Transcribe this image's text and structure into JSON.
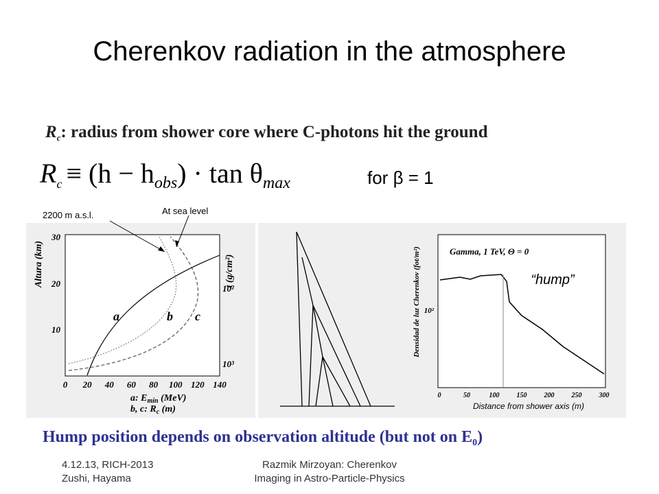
{
  "title": "Cherenkov radiation in the atmosphere",
  "definition": {
    "symbol": "R",
    "subscript": "c",
    "text": ": radius from shower core where C-photons hit the ground"
  },
  "formula": {
    "lhs": "R",
    "lhs_sub": "c",
    "rhs": "≡ (h − h",
    "obs_sub": "obs",
    "rest": ") · tan θ",
    "max_sub": "max"
  },
  "condition": "for β = 1",
  "annotations": {
    "high": "2200 m a.s.l.",
    "sea": "At sea level",
    "hump": "“hump”"
  },
  "left_plot": {
    "y_label": "Altura (km)",
    "y_ticks": [
      "30",
      "20",
      "10"
    ],
    "x_ticks": [
      "0",
      "20",
      "40",
      "60",
      "80",
      "100",
      "120",
      "140"
    ],
    "right_label": "t (g/cm²)",
    "right_ticks": [
      "10²",
      "10³"
    ],
    "curve_labels": [
      "a",
      "b",
      "c"
    ],
    "x_label_1": "a: E",
    "x_label_1_sub": "min",
    "x_label_1_unit": " (MeV)",
    "x_label_2": "b, c: R",
    "x_label_2_sub": "c",
    "x_label_2_unit": " (m)"
  },
  "right_plot": {
    "y_label": "Densidad de luz Cherenkov (fot/m²)",
    "legend": "Gamma, 1 TeV,   Θ = 0",
    "y_tick": "10²",
    "x_ticks": [
      "0",
      "50",
      "100",
      "150",
      "200",
      "250",
      "300"
    ],
    "x_label": "Distance from shower axis (m)"
  },
  "conclusion": {
    "text": "Hump position depends on observation altitude (but not on E",
    "sub": "0",
    "tail": ")"
  },
  "footer": {
    "left_1": "4.12.13, RICH-2013",
    "left_2": "Zushi, Hayama",
    "center_1": "Razmik Mirzoyan: Cherenkov",
    "center_2": "Imaging in Astro-Particle-Physics"
  }
}
